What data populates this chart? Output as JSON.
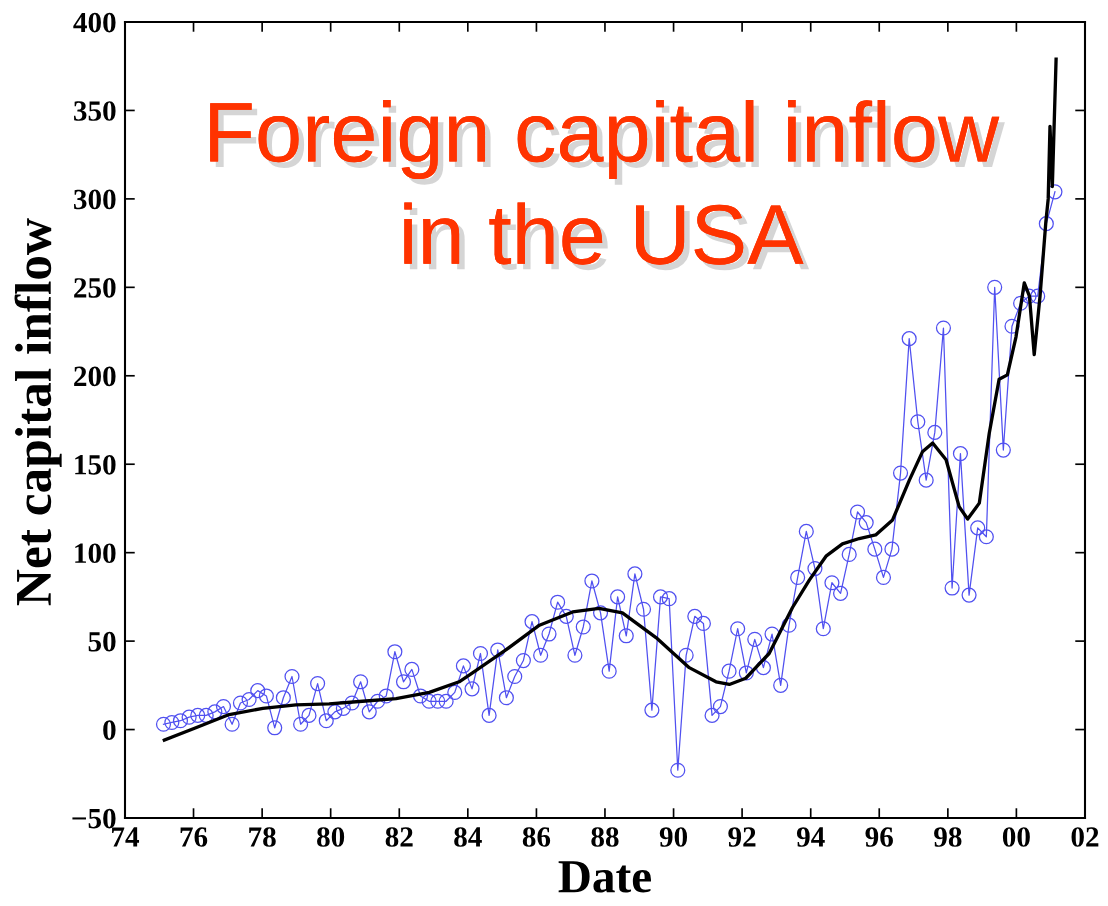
{
  "chart_data": {
    "type": "line",
    "title": "Foreign capital inflow\nin the USA",
    "xlabel": "Date",
    "ylabel": "Net capital inflow",
    "xlim": [
      "1974",
      "2002"
    ],
    "xticks": [
      {
        "value": "1974",
        "label": "74"
      },
      {
        "value": "1976",
        "label": "76"
      },
      {
        "value": "1978",
        "label": "78"
      },
      {
        "value": "1980",
        "label": "80"
      },
      {
        "value": "1982",
        "label": "82"
      },
      {
        "value": "1984",
        "label": "84"
      },
      {
        "value": "1986",
        "label": "86"
      },
      {
        "value": "1988",
        "label": "88"
      },
      {
        "value": "1990",
        "label": "90"
      },
      {
        "value": "1992",
        "label": "92"
      },
      {
        "value": "1994",
        "label": "94"
      },
      {
        "value": "1996",
        "label": "96"
      },
      {
        "value": "1998",
        "label": "98"
      },
      {
        "value": "2000",
        "label": "00"
      },
      {
        "value": "2002",
        "label": "02"
      }
    ],
    "ylim": [
      -50,
      400
    ],
    "yticks": [
      {
        "value": -50,
        "label": "−50"
      },
      0,
      50,
      100,
      150,
      200,
      250,
      300,
      350,
      400
    ],
    "series": [
      {
        "color": "#5050f0",
        "marker": "circle",
        "x": [
          "1975-02-15",
          "1975-05-15",
          "1975-08-15",
          "1975-11-15",
          "1976-02-15",
          "1976-05-15",
          "1976-08-15",
          "1976-11-15",
          "1977-02-15",
          "1977-05-15",
          "1977-08-15",
          "1977-11-15",
          "1978-02-15",
          "1978-05-15",
          "1978-08-15",
          "1978-11-15",
          "1979-02-15",
          "1979-05-15",
          "1979-08-15",
          "1979-11-15",
          "1980-02-15",
          "1980-05-15",
          "1980-08-15",
          "1980-11-15",
          "1981-02-15",
          "1981-05-15",
          "1981-08-15",
          "1981-11-15",
          "1982-02-15",
          "1982-05-15",
          "1982-08-15",
          "1982-11-15",
          "1983-02-15",
          "1983-05-15",
          "1983-08-15",
          "1983-11-15",
          "1984-02-15",
          "1984-05-15",
          "1984-08-15",
          "1984-11-15",
          "1985-02-15",
          "1985-05-15",
          "1985-08-15",
          "1985-11-15",
          "1986-02-15",
          "1986-05-15",
          "1986-08-15",
          "1986-11-15",
          "1987-02-15",
          "1987-05-15",
          "1987-08-15",
          "1987-11-15",
          "1988-02-15",
          "1988-05-15",
          "1988-08-15",
          "1988-11-15",
          "1989-02-15",
          "1989-05-15",
          "1989-08-15",
          "1989-11-15",
          "1990-02-15",
          "1990-05-15",
          "1990-08-15",
          "1990-11-15",
          "1991-02-15",
          "1991-05-15",
          "1991-08-15",
          "1991-11-15",
          "1992-02-15",
          "1992-05-15",
          "1992-08-15",
          "1992-11-15",
          "1993-02-15",
          "1993-05-15",
          "1993-08-15",
          "1993-11-15",
          "1994-02-15",
          "1994-05-15",
          "1994-08-15",
          "1994-11-15",
          "1995-02-15",
          "1995-05-15",
          "1995-08-15",
          "1995-11-15",
          "1996-02-15",
          "1996-05-15",
          "1996-08-15",
          "1996-11-15",
          "1997-02-15",
          "1997-05-15",
          "1997-08-15",
          "1997-11-15",
          "1998-02-15",
          "1998-05-15",
          "1998-08-15",
          "1998-11-15",
          "1999-02-15",
          "1999-05-15",
          "1999-08-15",
          "1999-11-15",
          "2000-02-15",
          "2000-05-15",
          "2000-08-15",
          "2000-11-15",
          "2001-02-15"
        ],
        "values": [
          3,
          4,
          5,
          7,
          8,
          8,
          10,
          13,
          3,
          15,
          17,
          22,
          19,
          1,
          18,
          30,
          3,
          8,
          26,
          5,
          10,
          12,
          15,
          27,
          10,
          16,
          19,
          44,
          27,
          34,
          19,
          16,
          16,
          16,
          21,
          36,
          23,
          43,
          8,
          45,
          18,
          30,
          39,
          61,
          42,
          54,
          72,
          64,
          42,
          58,
          84,
          66,
          33,
          75,
          53,
          88,
          68,
          11,
          75,
          74,
          -23,
          42,
          64,
          60,
          8,
          13,
          33,
          57,
          32,
          51,
          35,
          54,
          25,
          59,
          86,
          112,
          91,
          57,
          83,
          77,
          99,
          123,
          117,
          102,
          86,
          102,
          145,
          221,
          174,
          141,
          168,
          227,
          80,
          156,
          76,
          114,
          109,
          250,
          158,
          228,
          241,
          245,
          245,
          286,
          304
        ]
      },
      {
        "color": "#000000",
        "x": [
          "1975-02-24",
          "1976-01-26",
          "1977-01-15",
          "1978-01-08",
          "1978-12-28",
          "1979-12-16",
          "1980-12-05",
          "1981-11-28",
          "1982-11-17",
          "1983-10-01",
          "1984-02-20",
          "1985-02-09",
          "1986-02-02",
          "1987-01-22",
          "1987-10-30",
          "1988-07-05",
          "1989-06-28",
          "1990-06-17",
          "1991-03-29",
          "1991-08-18",
          "1992-02-09",
          "1992-10-15",
          "1993-06-21",
          "1993-12-17",
          "1994-06-13",
          "1994-12-05",
          "1995-06-02",
          "1995-11-24",
          "1996-05-22",
          "1996-11-17",
          "1997-04-05",
          "1997-07-23",
          "1997-12-13",
          "1998-05-01",
          "1998-07-31",
          "1998-12-02",
          "1999-03-18",
          "1999-07-01",
          "1999-09-27",
          "1999-12-28",
          "2000-03-25",
          "2000-05-19",
          "2000-07-09",
          "2000-09-09",
          "2000-11-10",
          "2000-12-05",
          "2000-12-24",
          "2001-01-18",
          "2001-02-27"
        ],
        "values": [
          -6,
          1,
          8.5,
          12,
          14,
          14.5,
          16,
          17.5,
          21,
          27,
          32,
          45,
          59,
          66.5,
          68.5,
          66,
          52,
          35,
          27,
          25.5,
          29,
          43,
          69,
          84.5,
          98,
          105,
          108,
          110,
          118.5,
          141,
          157,
          162,
          152.5,
          126,
          119,
          128,
          167.5,
          198,
          200.5,
          222,
          252.5,
          245,
          212,
          245,
          287,
          300,
          341,
          307,
          379
        ]
      }
    ]
  }
}
